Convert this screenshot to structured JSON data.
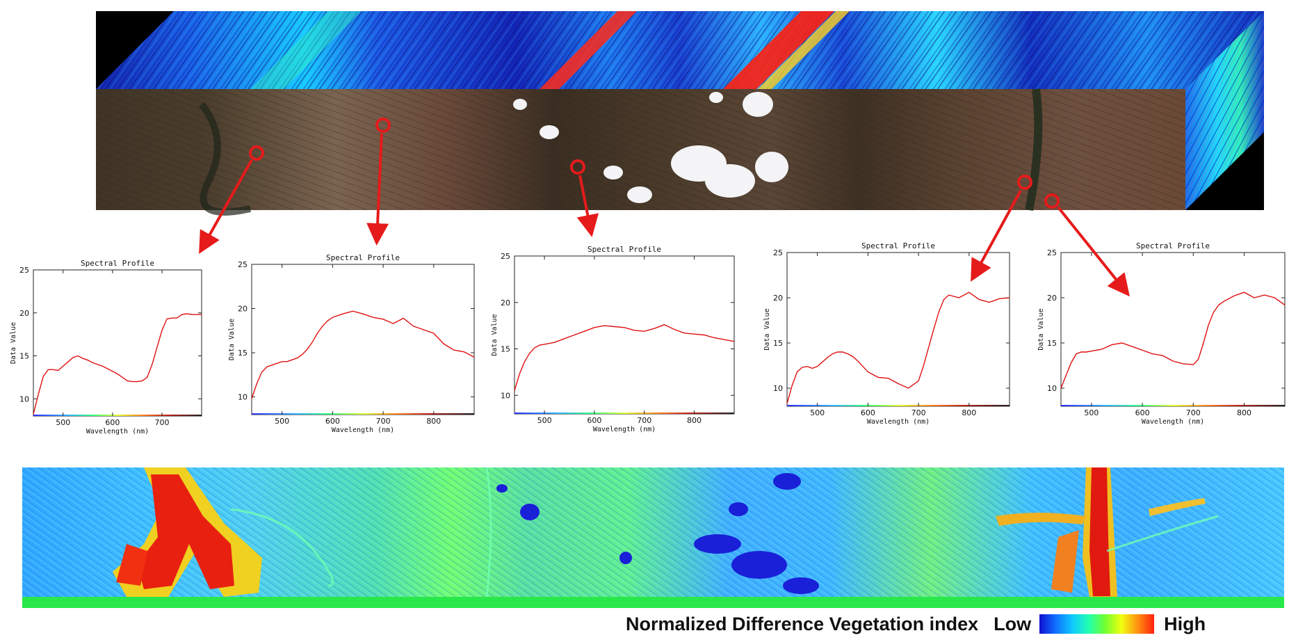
{
  "colors": {
    "profile_line": "#e01010",
    "arrow": "#e51b1b",
    "terrain": "#5a4232",
    "cube_side": "#1a2eb0"
  },
  "charts": [
    {
      "chart_data": {
        "type": "line",
        "title": "Spectral Profile",
        "xlabel": "Wavelength (nm)",
        "ylabel": "Data Value",
        "xlim": [
          440,
          780
        ],
        "ylim": [
          8,
          25
        ],
        "xticks": [
          500,
          600,
          700
        ],
        "yticks": [
          10,
          15,
          20,
          25
        ],
        "x": [
          440,
          450,
          460,
          470,
          480,
          490,
          500,
          510,
          520,
          530,
          540,
          550,
          560,
          570,
          580,
          590,
          600,
          610,
          620,
          630,
          640,
          650,
          660,
          670,
          680,
          690,
          700,
          710,
          720,
          730,
          740,
          750,
          760,
          770,
          780
        ],
        "y": [
          8.2,
          10.5,
          12.6,
          13.4,
          13.4,
          13.3,
          13.8,
          14.3,
          14.8,
          15.0,
          14.7,
          14.5,
          14.2,
          14.0,
          13.8,
          13.5,
          13.2,
          12.9,
          12.5,
          12.1,
          12.0,
          12.0,
          12.1,
          12.5,
          14.0,
          16.0,
          18.0,
          19.3,
          19.4,
          19.4,
          19.8,
          19.9,
          19.8,
          19.8,
          19.8
        ]
      }
    },
    {
      "chart_data": {
        "type": "line",
        "title": "Spectral Profile",
        "xlabel": "Wavelength (nm)",
        "ylabel": "Data Value",
        "xlim": [
          440,
          880
        ],
        "ylim": [
          8,
          25
        ],
        "xticks": [
          500,
          600,
          700,
          800
        ],
        "yticks": [
          10,
          15,
          20,
          25
        ],
        "x": [
          440,
          450,
          460,
          470,
          480,
          490,
          500,
          510,
          520,
          530,
          540,
          550,
          560,
          570,
          580,
          590,
          600,
          620,
          640,
          660,
          680,
          700,
          720,
          740,
          760,
          780,
          800,
          820,
          840,
          860,
          880
        ],
        "y": [
          9.8,
          11.5,
          12.8,
          13.4,
          13.6,
          13.8,
          14.0,
          14.0,
          14.2,
          14.4,
          14.8,
          15.4,
          16.2,
          17.2,
          18.0,
          18.6,
          19.0,
          19.4,
          19.7,
          19.4,
          19.0,
          18.8,
          18.3,
          18.9,
          18.0,
          17.6,
          17.2,
          16.0,
          15.3,
          15.1,
          14.5
        ]
      }
    },
    {
      "chart_data": {
        "type": "line",
        "title": "Spectral Profile",
        "xlabel": "Wavelength (nm)",
        "ylabel": "Data Value",
        "xlim": [
          440,
          880
        ],
        "ylim": [
          8,
          25
        ],
        "xticks": [
          500,
          600,
          700,
          800
        ],
        "yticks": [
          10,
          15,
          20,
          25
        ],
        "x": [
          440,
          450,
          460,
          470,
          480,
          490,
          500,
          520,
          540,
          560,
          580,
          600,
          620,
          640,
          660,
          680,
          700,
          720,
          740,
          760,
          780,
          800,
          820,
          840,
          860,
          880
        ],
        "y": [
          10.5,
          12.3,
          13.6,
          14.5,
          15.1,
          15.4,
          15.5,
          15.7,
          16.1,
          16.5,
          16.9,
          17.3,
          17.5,
          17.4,
          17.3,
          17.0,
          16.9,
          17.2,
          17.6,
          17.1,
          16.7,
          16.6,
          16.5,
          16.2,
          16.0,
          15.8
        ]
      }
    },
    {
      "chart_data": {
        "type": "line",
        "title": "Spectral Profile",
        "xlabel": "Wavelength (nm)",
        "ylabel": "Data Value",
        "xlim": [
          440,
          880
        ],
        "ylim": [
          8,
          25
        ],
        "xticks": [
          500,
          600,
          700,
          800
        ],
        "yticks": [
          10,
          15,
          20,
          25
        ],
        "x": [
          440,
          450,
          460,
          470,
          480,
          490,
          500,
          510,
          520,
          530,
          540,
          550,
          560,
          570,
          580,
          590,
          600,
          620,
          640,
          660,
          680,
          700,
          710,
          720,
          730,
          740,
          750,
          760,
          780,
          800,
          820,
          840,
          860,
          880
        ],
        "y": [
          8.3,
          10.3,
          11.8,
          12.3,
          12.4,
          12.2,
          12.4,
          12.9,
          13.4,
          13.8,
          14.0,
          14.0,
          13.8,
          13.5,
          13.0,
          12.4,
          11.8,
          11.2,
          11.1,
          10.5,
          10.0,
          10.8,
          12.5,
          14.5,
          16.5,
          18.4,
          19.8,
          20.3,
          20.0,
          20.6,
          19.8,
          19.5,
          19.9,
          20.0
        ]
      }
    },
    {
      "chart_data": {
        "type": "line",
        "title": "Spectral Profile",
        "xlabel": "Wavelength (nm)",
        "ylabel": "Data Value",
        "xlim": [
          440,
          880
        ],
        "ylim": [
          8,
          25
        ],
        "xticks": [
          500,
          600,
          700,
          800
        ],
        "yticks": [
          10,
          15,
          20,
          25
        ],
        "x": [
          440,
          450,
          460,
          470,
          480,
          490,
          500,
          520,
          540,
          560,
          580,
          600,
          620,
          640,
          660,
          680,
          700,
          710,
          720,
          730,
          740,
          750,
          760,
          780,
          800,
          820,
          840,
          860,
          880
        ],
        "y": [
          10.0,
          11.4,
          12.8,
          13.8,
          14.0,
          14.0,
          14.1,
          14.3,
          14.8,
          15.0,
          14.6,
          14.2,
          13.8,
          13.6,
          13.0,
          12.7,
          12.6,
          13.2,
          15.0,
          17.0,
          18.4,
          19.2,
          19.6,
          20.2,
          20.6,
          20.0,
          20.3,
          20.0,
          19.2
        ]
      }
    }
  ],
  "legend": {
    "title": "Normalized Difference Vegetation index",
    "low": "Low",
    "high": "High"
  }
}
